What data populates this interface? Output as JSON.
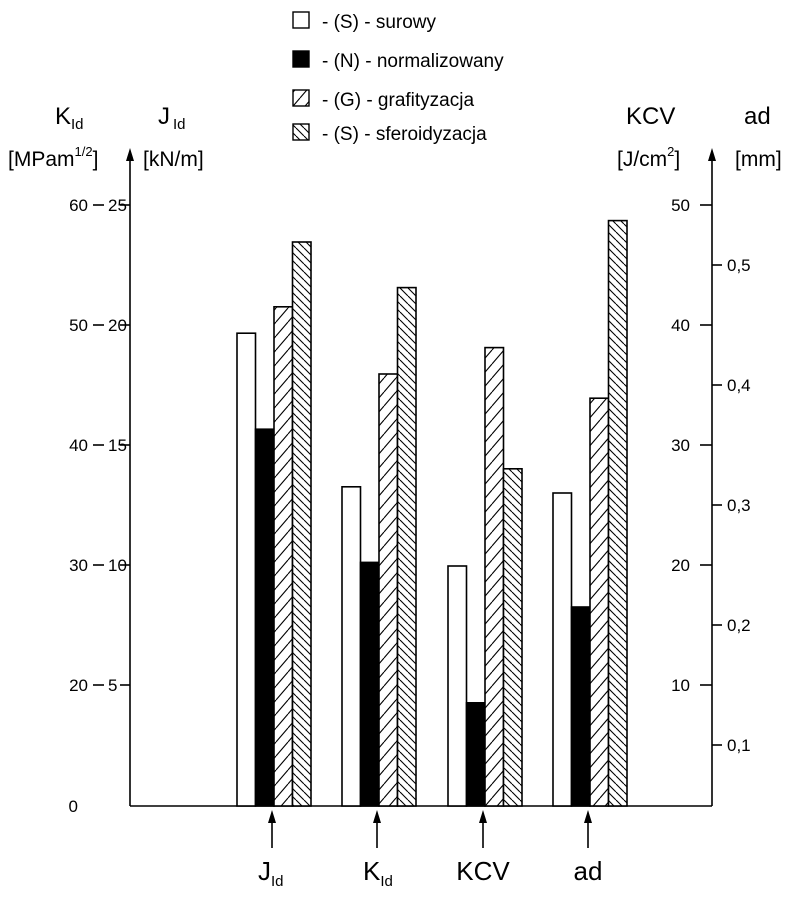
{
  "legend": [
    {
      "label": "- (S) - surowy",
      "pattern": "white"
    },
    {
      "label": "- (N) - normalizowany",
      "pattern": "black"
    },
    {
      "label": "- (G) - grafityzacja",
      "pattern": "diag"
    },
    {
      "label": "- (S) - sferoidyzacja",
      "pattern": "dense"
    }
  ],
  "axes": {
    "kid": {
      "main": "K",
      "sub": "Id",
      "unit_pre": "[MPam",
      "unit_sup": "1/2",
      "unit_post": "]"
    },
    "jid": {
      "main": "J",
      "sub": "Id",
      "unit": "[kN/m]"
    },
    "kcv": {
      "main": "KCV",
      "unit_pre": "[J/cm",
      "unit_sup": "2",
      "unit_post": "]"
    },
    "ad": {
      "main": "ad",
      "unit": "[mm]"
    }
  },
  "ticks": {
    "kid": [
      "0",
      "20",
      "30",
      "40",
      "50",
      "60"
    ],
    "jid": [
      "5",
      "10",
      "15",
      "20",
      "25"
    ],
    "kcv": [
      "10",
      "20",
      "30",
      "40",
      "50"
    ],
    "ad": [
      "0,1",
      "0,2",
      "0,3",
      "0,4",
      "0,5"
    ]
  },
  "colors": {
    "ink": "#000000",
    "paper": "#ffffff"
  },
  "chart_data": {
    "type": "bar",
    "categories": [
      {
        "main": "J",
        "sub": "Id"
      },
      {
        "main": "K",
        "sub": "Id"
      },
      {
        "main": "KCV",
        "sub": ""
      },
      {
        "main": "ad",
        "sub": ""
      }
    ],
    "series": [
      {
        "name": "(S) - surowy",
        "pattern": "white",
        "values": [
          19.7,
          36.6,
          20,
          0.31
        ]
      },
      {
        "name": "(N) - normalizowany",
        "pattern": "black",
        "values": [
          15.7,
          30.3,
          8.6,
          0.215
        ]
      },
      {
        "name": "(G) - grafityzacja",
        "pattern": "diag",
        "values": [
          20.8,
          46,
          38.2,
          0.389
        ]
      },
      {
        "name": "(S) - sferoidyzacja",
        "pattern": "dense",
        "values": [
          23.5,
          53.2,
          28.1,
          0.537
        ]
      }
    ],
    "axes": {
      "J_Id": {
        "unit": "kN/m",
        "range": [
          0,
          25
        ],
        "ticks": [
          5,
          10,
          15,
          20,
          25
        ]
      },
      "K_Id": {
        "unit": "MPam^1/2",
        "range": [
          0,
          60
        ],
        "ticks": [
          0,
          20,
          30,
          40,
          50,
          60
        ]
      },
      "KCV": {
        "unit": "J/cm^2",
        "range": [
          0,
          50
        ],
        "ticks": [
          10,
          20,
          30,
          40,
          50
        ]
      },
      "ad": {
        "unit": "mm",
        "range": [
          0.05,
          0.55
        ],
        "ticks": [
          0.1,
          0.2,
          0.3,
          0.4,
          0.5
        ]
      }
    },
    "grid": false
  }
}
